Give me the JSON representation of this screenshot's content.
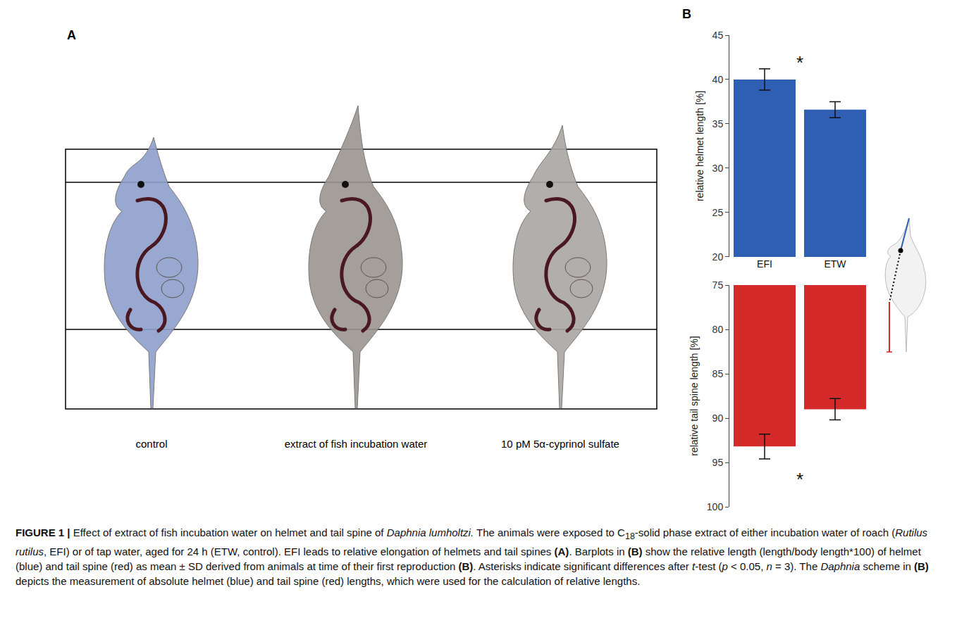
{
  "panel_a": {
    "label": "A",
    "images": [
      {
        "caption": "control"
      },
      {
        "caption": "extract of fish incubation water"
      },
      {
        "caption": "10 pM 5α-cyprinol sulfate"
      }
    ]
  },
  "panel_b_label": "B",
  "chart_data": [
    {
      "type": "bar",
      "categories": [
        "EFI",
        "ETW"
      ],
      "values": [
        40.0,
        36.6
      ],
      "errors": [
        1.2,
        0.9
      ],
      "color": "#2f5fb3",
      "ylabel": "relative helmet length [%]",
      "ylim": [
        20,
        45
      ],
      "yticks": [
        20,
        25,
        30,
        35,
        40,
        45
      ],
      "annotations": [
        "*"
      ]
    },
    {
      "type": "bar",
      "categories": [
        "EFI",
        "ETW"
      ],
      "values": [
        93.2,
        89.0
      ],
      "errors": [
        1.4,
        1.2
      ],
      "color": "#d42a2a",
      "ylabel": "relative tail spine length [%]",
      "ylim": [
        100,
        75
      ],
      "yticks": [
        75,
        80,
        85,
        90,
        95,
        100
      ],
      "tick_labels": "y",
      "annotations": [
        "*"
      ]
    }
  ],
  "caption": [
    {
      "text": "FIGURE 1 | ",
      "style": "bold"
    },
    {
      "text": "Effect of extract of fish incubation water on helmet and tail spine of ",
      "style": "plain"
    },
    {
      "text": "Daphnia lumholtzi.",
      "style": "italic"
    },
    {
      "text": " The animals were exposed to C",
      "style": "plain"
    },
    {
      "text": "18",
      "style": "sub"
    },
    {
      "text": "-solid phase extract of either incubation water of roach (",
      "style": "plain"
    },
    {
      "text": "Rutilus rutilus",
      "style": "italic"
    },
    {
      "text": ", EFI) or of tap water, aged for 24 h (ETW, control). EFI leads to relative elongation of helmets and tail spines ",
      "style": "plain"
    },
    {
      "text": "(A)",
      "style": "bold"
    },
    {
      "text": ". Barplots in ",
      "style": "plain"
    },
    {
      "text": "(B)",
      "style": "bold"
    },
    {
      "text": " show the relative length (length/body length*100) of helmet (blue) and tail spine (red) as mean ± SD derived from animals at time of their first reproduction ",
      "style": "plain"
    },
    {
      "text": "(B)",
      "style": "bold"
    },
    {
      "text": ". Asterisks indicate significant differences after ",
      "style": "plain"
    },
    {
      "text": "t",
      "style": "italic"
    },
    {
      "text": "-test (",
      "style": "plain"
    },
    {
      "text": "p",
      "style": "italic"
    },
    {
      "text": " < 0.05, ",
      "style": "plain"
    },
    {
      "text": "n",
      "style": "italic"
    },
    {
      "text": " = 3). The ",
      "style": "plain"
    },
    {
      "text": "Daphnia",
      "style": "italic"
    },
    {
      "text": " scheme in ",
      "style": "plain"
    },
    {
      "text": "(B)",
      "style": "bold"
    },
    {
      "text": " depicts the measurement of absolute helmet (blue) and tail spine (red) lengths, which were used for the calculation of relative lengths.",
      "style": "plain"
    }
  ]
}
